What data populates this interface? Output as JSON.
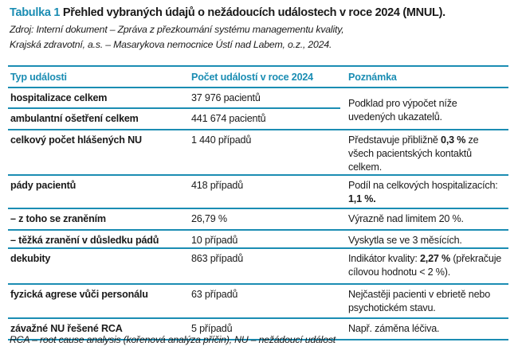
{
  "title": {
    "label": "Tabulka 1",
    "text": "Přehled vybraných údajů o nežádoucích událostech v roce 2024 (MNUL)."
  },
  "source": {
    "line1": "Zdroj: Interní dokument – Zpráva z přezkoumání systému managementu kvality,",
    "line2": "Krajská zdravotní, a.s. – Masarykova nemocnice Ústí nad Labem, o.z., 2024."
  },
  "table": {
    "headers": [
      "Typ události",
      "Počet událostí v roce 2024",
      "Poznámka"
    ],
    "rows": [
      {
        "type": "hospitalizace celkem",
        "count": "37 976 pacientů"
      },
      {
        "type": "ambulantní ošetření celkem",
        "count": "441 674 pacientů"
      },
      {
        "type": "celkový počet hlášených NU",
        "count": "1 440 případů"
      },
      {
        "type": "pády pacientů",
        "count": "418 případů"
      },
      {
        "type": "– z toho se zraněním",
        "count": "26,79 %"
      },
      {
        "type": "– těžká zranění v důsledku pádů",
        "count": "10 případů"
      },
      {
        "type": "dekubity",
        "count": "863 případů"
      },
      {
        "type": "fyzická agrese vůči personálu",
        "count": "63 případů"
      },
      {
        "type": "závažné NU řešené RCA",
        "count": "5 případů"
      }
    ],
    "notes": {
      "n12": "Podklad pro výpočet níže uvedených ukazatelů.",
      "n3_a": "Představuje přibližně ",
      "n3_b": "0,3 %",
      "n3_c": " ze všech pacientských kontaktů celkem.",
      "n4_a": "Podíl na celkových hospitalizacích: ",
      "n4_b": "1,1 %.",
      "n5": "Výrazně nad limitem 20 %.",
      "n6": "Vyskytla se ve 3 měsících.",
      "n7_a": "Indikátor kvality: ",
      "n7_b": "2,27 %",
      "n7_c": " (překračuje cílovou hodnotu < 2 %).",
      "n8": "Nejčastěji pacienti v ebrietě nebo psychotickém stavu.",
      "n9": "Např. záměna léčiva."
    }
  },
  "footnote": "RCA – root cause analysis (kořenová analýza příčin), NU – nežádoucí událost",
  "colors": {
    "accent": "#1b8db3"
  }
}
